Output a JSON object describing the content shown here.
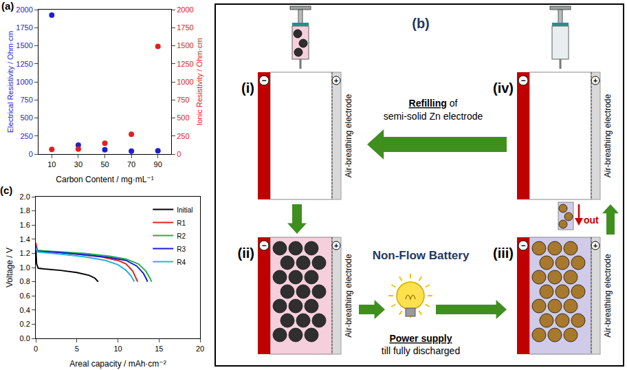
{
  "chart_data": [
    {
      "panel_label": "(a)",
      "type": "scatter",
      "x_label": "Carbon Content / mg·mL⁻¹",
      "y_label": "Electrical Resistivity / Ohm·cm",
      "y2_label": "Ionic Resistivity / Ohm·cm",
      "x": [
        10,
        30,
        50,
        70,
        90
      ],
      "series": [
        {
          "color": "#1f1fd0",
          "marker": "circle",
          "values": [
            1925,
            125,
            60,
            40,
            45
          ]
        },
        {
          "color": "#e3201c",
          "marker": "circle",
          "axis": "y2",
          "values": [
            65,
            70,
            150,
            275,
            1490
          ]
        }
      ],
      "xlim": [
        0,
        100
      ],
      "xticks": [
        10,
        30,
        50,
        70,
        90
      ],
      "ylim": [
        0,
        2000
      ],
      "yticks": [
        0,
        250,
        500,
        750,
        1000,
        1250,
        1500,
        1750,
        2000
      ],
      "y2lim": [
        0,
        2000
      ],
      "y2ticks": [
        0,
        250,
        500,
        750,
        1000,
        1250,
        1500,
        1750,
        2000
      ],
      "grid": false
    },
    {
      "panel_label": "(c)",
      "type": "line",
      "x_label": "Areal capacity / mAh·cm⁻²",
      "y_label": "Voltage / V",
      "series": [
        {
          "name": "Initial",
          "color": "#000000",
          "line_style": "solid",
          "x": [
            0,
            0.1,
            0.3,
            1,
            3,
            5,
            6.5,
            7.2,
            7.6
          ],
          "values": [
            1.3,
            1.05,
            0.99,
            0.98,
            0.96,
            0.93,
            0.89,
            0.85,
            0.8
          ]
        },
        {
          "name": "R1",
          "color": "#e3201c",
          "line_style": "solid",
          "x": [
            0,
            0.2,
            2,
            5,
            8,
            10,
            11,
            11.8,
            12.2,
            12.4
          ],
          "values": [
            1.35,
            1.24,
            1.22,
            1.19,
            1.15,
            1.1,
            1.05,
            0.95,
            0.85,
            0.8
          ]
        },
        {
          "name": "R2",
          "color": "#22b14c",
          "line_style": "solid",
          "x": [
            0,
            0.2,
            3,
            6,
            9,
            11,
            12.5,
            13.4,
            13.9,
            14.1
          ],
          "values": [
            1.3,
            1.24,
            1.22,
            1.2,
            1.16,
            1.12,
            1.05,
            0.95,
            0.85,
            0.8
          ]
        },
        {
          "name": "R3",
          "color": "#1c1cd6",
          "line_style": "solid",
          "x": [
            0,
            0.2,
            3,
            6,
            9,
            11,
            12.3,
            13.1,
            13.5,
            13.6
          ],
          "values": [
            1.3,
            1.23,
            1.21,
            1.18,
            1.14,
            1.1,
            1.02,
            0.92,
            0.83,
            0.8
          ]
        },
        {
          "name": "R4",
          "color": "#1fb5e6",
          "line_style": "solid",
          "x": [
            0,
            0.2,
            3,
            6,
            8.5,
            10,
            11,
            11.6,
            12
          ],
          "values": [
            1.28,
            1.22,
            1.19,
            1.15,
            1.1,
            1.04,
            0.96,
            0.88,
            0.8
          ]
        }
      ],
      "xlim": [
        0,
        20
      ],
      "xticks": [
        0,
        5,
        10,
        15,
        20
      ],
      "ylim": [
        0,
        2
      ],
      "yticks": [
        {
          "value": 0,
          "label": "0.0"
        },
        {
          "value": 0.2,
          "label": "0.2"
        },
        {
          "value": 0.4,
          "label": "0.4"
        },
        {
          "value": 0.6,
          "label": "0.6"
        },
        {
          "value": 0.8,
          "label": "0.8"
        },
        {
          "value": 1,
          "label": "1.0"
        },
        {
          "value": 1.2,
          "label": "1.2"
        },
        {
          "value": 1.4,
          "label": "1.4"
        },
        {
          "value": 1.6,
          "label": "1.6"
        },
        {
          "value": 1.8,
          "label": "1.8"
        },
        {
          "value": 2,
          "label": "2.0"
        }
      ],
      "legend": "upper right",
      "grid": false
    }
  ],
  "diagram": {
    "panel_label": "(b)",
    "steps": [
      "(i)",
      "(ii)",
      "(iii)",
      "(iv)"
    ],
    "electrode_label": "Air-breathing electrode",
    "negative_sign": "−",
    "positive_sign": "+",
    "refilling_text": [
      [
        {
          "text": "Refilling",
          "underline": true
        },
        {
          "text": " of"
        }
      ],
      [
        {
          "text": "semi-solid Zn electrode"
        }
      ]
    ],
    "battery_label": "Non-Flow Battery",
    "power_text": [
      [
        {
          "text": "Power supply",
          "underline": true
        }
      ],
      [
        {
          "text": "till fully discharged"
        }
      ]
    ],
    "out_label": "out"
  }
}
